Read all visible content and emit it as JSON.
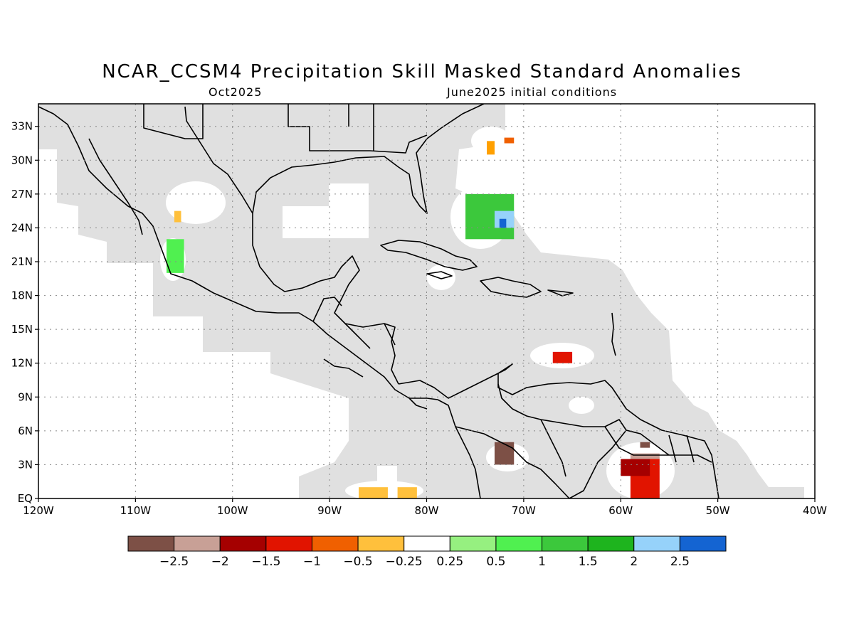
{
  "header": {
    "title": "NCAR_CCSM4 Precipitation Skill Masked Standard Anomalies",
    "valid_month": "Oct2025",
    "init": "June2025 initial conditions"
  },
  "map": {
    "lon_range": [
      -120,
      -40
    ],
    "lat_range": [
      0,
      35
    ],
    "lat_ticks": [
      {
        "value": 33,
        "label": "33N"
      },
      {
        "value": 30,
        "label": "30N"
      },
      {
        "value": 27,
        "label": "27N"
      },
      {
        "value": 24,
        "label": "24N"
      },
      {
        "value": 21,
        "label": "21N"
      },
      {
        "value": 18,
        "label": "18N"
      },
      {
        "value": 15,
        "label": "15N"
      },
      {
        "value": 12,
        "label": "12N"
      },
      {
        "value": 9,
        "label": "9N"
      },
      {
        "value": 6,
        "label": "6N"
      },
      {
        "value": 3,
        "label": "3N"
      },
      {
        "value": 0,
        "label": "EQ"
      }
    ],
    "lon_ticks": [
      {
        "value": -120,
        "label": "120W"
      },
      {
        "value": -110,
        "label": "110W"
      },
      {
        "value": -100,
        "label": "100W"
      },
      {
        "value": -90,
        "label": "90W"
      },
      {
        "value": -80,
        "label": "80W"
      },
      {
        "value": -70,
        "label": "70W"
      },
      {
        "value": -60,
        "label": "60W"
      },
      {
        "value": -50,
        "label": "50W"
      },
      {
        "value": -40,
        "label": "40W"
      }
    ],
    "mask_color": "#e0e0e0",
    "anomaly_patches": [
      {
        "region": "Bahamas",
        "color": "#3cc83c",
        "lon": [
          -76,
          -71
        ],
        "lat": [
          23,
          27
        ]
      },
      {
        "region": "Bahamas east",
        "color": "#96d2fa",
        "lon": [
          -73,
          -71
        ],
        "lat": [
          24,
          25.5
        ]
      },
      {
        "region": "Bahamas east",
        "color": "#1464d2",
        "lon": [
          -72.5,
          -71.8
        ],
        "lat": [
          24,
          24.8
        ]
      },
      {
        "region": "NW Mexico coast",
        "color": "#50f050",
        "lon": [
          -106.8,
          -105
        ],
        "lat": [
          20,
          23
        ]
      },
      {
        "region": "Baja Sonora",
        "color": "#ffc03c",
        "lon": [
          -106,
          -105.3
        ],
        "lat": [
          24.5,
          25.5
        ]
      },
      {
        "region": "Atlantic north",
        "color": "#ffa000",
        "lon": [
          -73.8,
          -73
        ],
        "lat": [
          30.5,
          31.7
        ]
      },
      {
        "region": "Atlantic north",
        "color": "#f06000",
        "lon": [
          -72,
          -71
        ],
        "lat": [
          31.5,
          32
        ]
      },
      {
        "region": "Caribbean",
        "color": "#e11400",
        "lon": [
          -67,
          -65
        ],
        "lat": [
          12,
          13
        ]
      },
      {
        "region": "Colombia",
        "color": "#7d5046",
        "lon": [
          -73,
          -71
        ],
        "lat": [
          3,
          5
        ]
      },
      {
        "region": "Guiana",
        "color": "#e11400",
        "lon": [
          -59,
          -56
        ],
        "lat": [
          0,
          3.5
        ]
      },
      {
        "region": "Guiana",
        "color": "#a50000",
        "lon": [
          -60,
          -57
        ],
        "lat": [
          2,
          3.5
        ]
      },
      {
        "region": "Guiana",
        "color": "#c8a096",
        "lon": [
          -59,
          -56
        ],
        "lat": [
          3.5,
          4
        ]
      },
      {
        "region": "Guiana",
        "color": "#7d5046",
        "lon": [
          -58,
          -57
        ],
        "lat": [
          4.5,
          5
        ]
      },
      {
        "region": "Panama Pacific",
        "color": "#ffc03c",
        "lon": [
          -87,
          -84
        ],
        "lat": [
          0,
          1
        ]
      },
      {
        "region": "Panama Pacific",
        "color": "#ffc03c",
        "lon": [
          -83,
          -81
        ],
        "lat": [
          0,
          1
        ]
      }
    ]
  },
  "colorbar": {
    "colors": [
      "#7d5046",
      "#c8a096",
      "#a50000",
      "#e11400",
      "#f06000",
      "#ffc03c",
      "#ffffff",
      "#96f080",
      "#50f050",
      "#3cc83c",
      "#1eb41e",
      "#96d2fa",
      "#1464d2"
    ],
    "labels": [
      "-2.5",
      "-2",
      "-1.5",
      "-1",
      "-0.5",
      "-0.25",
      "0.25",
      "0.5",
      "1",
      "1.5",
      "2",
      "2.5"
    ]
  }
}
